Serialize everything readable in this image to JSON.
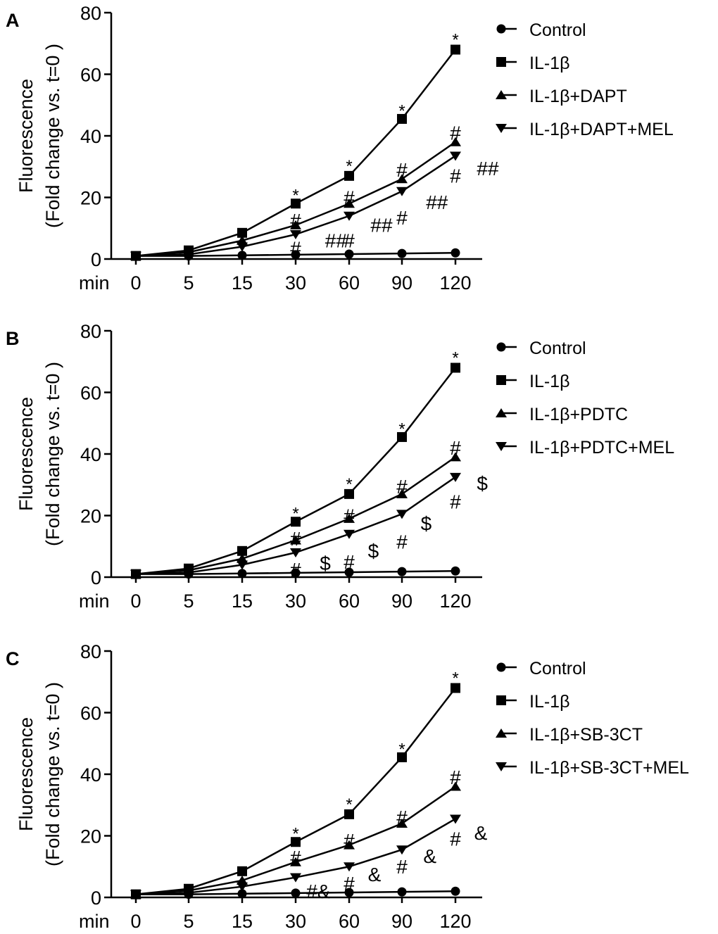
{
  "chart_data": [
    {
      "panel": "A",
      "type": "line",
      "x_label": "min",
      "categories": [
        "0",
        "5",
        "15",
        "30",
        "60",
        "90",
        "120"
      ],
      "ylabel_line1": "Fluorescence",
      "ylabel_line2": "(Fold change vs. t=0 )",
      "ylim": [
        0,
        80
      ],
      "yticks": [
        "0",
        "20",
        "40",
        "60",
        "80"
      ],
      "series": [
        {
          "name": "Control",
          "marker": "circle",
          "values": [
            1,
            1,
            1.2,
            1.4,
            1.6,
            1.8,
            2
          ]
        },
        {
          "name": "IL-1β",
          "marker": "square",
          "values": [
            1,
            2.8,
            8.5,
            18,
            27,
            45.5,
            68
          ]
        },
        {
          "name": "IL-1β+DAPT",
          "marker": "triangle-up",
          "values": [
            1,
            2.2,
            6,
            11,
            18,
            26,
            38
          ]
        },
        {
          "name": "IL-1β+DAPT+MEL",
          "marker": "triangle-down",
          "values": [
            1,
            1.5,
            4,
            8,
            14,
            22,
            33.5
          ]
        }
      ],
      "annotations": [
        {
          "text": "*",
          "x": "30",
          "y": 22.5
        },
        {
          "text": "*",
          "x": "60",
          "y": 32
        },
        {
          "text": "*",
          "x": "90",
          "y": 50
        },
        {
          "text": "*",
          "x": "120",
          "y": 73
        },
        {
          "text": "#",
          "x": "30",
          "y": 13
        },
        {
          "text": "#",
          "x": "30",
          "y": 4
        },
        {
          "text": "##",
          "x": "30",
          "y": 6.5,
          "dx": 0.55
        },
        {
          "text": "#",
          "x": "60",
          "y": 20.5
        },
        {
          "text": "#",
          "x": "60",
          "y": 6.5
        },
        {
          "text": "##",
          "x": "60",
          "y": 11.5,
          "dx": 0.4
        },
        {
          "text": "#",
          "x": "90",
          "y": 29.5
        },
        {
          "text": "#",
          "x": "90",
          "y": 14
        },
        {
          "text": "##",
          "x": "90",
          "y": 19,
          "dx": 0.45
        },
        {
          "text": "#",
          "x": "120",
          "y": 41.5
        },
        {
          "text": "#",
          "x": "120",
          "y": 27.5
        },
        {
          "text": "##",
          "x": "120",
          "y": 30,
          "dx": 0.4
        }
      ]
    },
    {
      "panel": "B",
      "type": "line",
      "x_label": "min",
      "categories": [
        "0",
        "5",
        "15",
        "30",
        "60",
        "90",
        "120"
      ],
      "ylabel_line1": "Fluorescence",
      "ylabel_line2": "(Fold change vs. t=0 )",
      "ylim": [
        0,
        80
      ],
      "yticks": [
        "0",
        "20",
        "40",
        "60",
        "80"
      ],
      "series": [
        {
          "name": "Control",
          "marker": "circle",
          "values": [
            1,
            1,
            1.2,
            1.4,
            1.6,
            1.8,
            2
          ]
        },
        {
          "name": "IL-1β",
          "marker": "square",
          "values": [
            1,
            2.8,
            8.5,
            18,
            27,
            45.5,
            68
          ]
        },
        {
          "name": "IL-1β+PDTC",
          "marker": "triangle-up",
          "values": [
            1,
            2.2,
            6,
            12,
            19,
            27,
            39
          ]
        },
        {
          "name": "IL-1β+PDTC+MEL",
          "marker": "triangle-down",
          "values": [
            1,
            1.5,
            4,
            8,
            14,
            20.5,
            32.5
          ]
        }
      ],
      "annotations": [
        {
          "text": "*",
          "x": "30",
          "y": 22.5
        },
        {
          "text": "*",
          "x": "60",
          "y": 32
        },
        {
          "text": "*",
          "x": "90",
          "y": 50
        },
        {
          "text": "*",
          "x": "120",
          "y": 73
        },
        {
          "text": "#",
          "x": "30",
          "y": 13
        },
        {
          "text": "#",
          "x": "30",
          "y": 3
        },
        {
          "text": "$",
          "x": "30",
          "y": 5,
          "dx": 0.45
        },
        {
          "text": "#",
          "x": "60",
          "y": 20.5
        },
        {
          "text": "#",
          "x": "60",
          "y": 5.5
        },
        {
          "text": "$",
          "x": "60",
          "y": 9,
          "dx": 0.35
        },
        {
          "text": "#",
          "x": "90",
          "y": 30
        },
        {
          "text": "#",
          "x": "90",
          "y": 12
        },
        {
          "text": "$",
          "x": "90",
          "y": 18,
          "dx": 0.35
        },
        {
          "text": "#",
          "x": "120",
          "y": 42.5
        },
        {
          "text": "#",
          "x": "120",
          "y": 25
        },
        {
          "text": "$",
          "x": "120",
          "y": 31,
          "dx": 0.4
        }
      ]
    },
    {
      "panel": "C",
      "type": "line",
      "x_label": "min",
      "categories": [
        "0",
        "5",
        "15",
        "30",
        "60",
        "90",
        "120"
      ],
      "ylabel_line1": "Fluorescence",
      "ylabel_line2": "(Fold change vs. t=0 )",
      "ylim": [
        0,
        80
      ],
      "yticks": [
        "0",
        "20",
        "40",
        "60",
        "80"
      ],
      "series": [
        {
          "name": "Control",
          "marker": "circle",
          "values": [
            1,
            1,
            1.2,
            1.4,
            1.6,
            1.8,
            2
          ]
        },
        {
          "name": "IL-1β",
          "marker": "square",
          "values": [
            1,
            2.8,
            8.5,
            18,
            27,
            45.5,
            68
          ]
        },
        {
          "name": "IL-1β+SB-3CT",
          "marker": "triangle-up",
          "values": [
            1,
            2.2,
            5.5,
            11.5,
            17,
            24,
            36
          ]
        },
        {
          "name": "IL-1β+SB-3CT+MEL",
          "marker": "triangle-down",
          "values": [
            1,
            1.5,
            3.5,
            6.5,
            10,
            15.5,
            25.5
          ]
        }
      ],
      "annotations": [
        {
          "text": "*",
          "x": "30",
          "y": 22.5
        },
        {
          "text": "*",
          "x": "60",
          "y": 32
        },
        {
          "text": "*",
          "x": "90",
          "y": 50
        },
        {
          "text": "*",
          "x": "120",
          "y": 73
        },
        {
          "text": "#",
          "x": "30",
          "y": 13.5
        },
        {
          "text": "#&",
          "x": "30",
          "y": 2.5,
          "dx": 0.2
        },
        {
          "text": "#",
          "x": "60",
          "y": 19
        },
        {
          "text": "#",
          "x": "60",
          "y": 5
        },
        {
          "text": "&",
          "x": "60",
          "y": 8,
          "dx": 0.35
        },
        {
          "text": "#",
          "x": "90",
          "y": 26.5
        },
        {
          "text": "#",
          "x": "90",
          "y": 10.5
        },
        {
          "text": "&",
          "x": "90",
          "y": 14,
          "dx": 0.4
        },
        {
          "text": "#",
          "x": "120",
          "y": 39.5
        },
        {
          "text": "#",
          "x": "120",
          "y": 19.5
        },
        {
          "text": "&",
          "x": "120",
          "y": 21.5,
          "dx": 0.35
        }
      ]
    }
  ]
}
